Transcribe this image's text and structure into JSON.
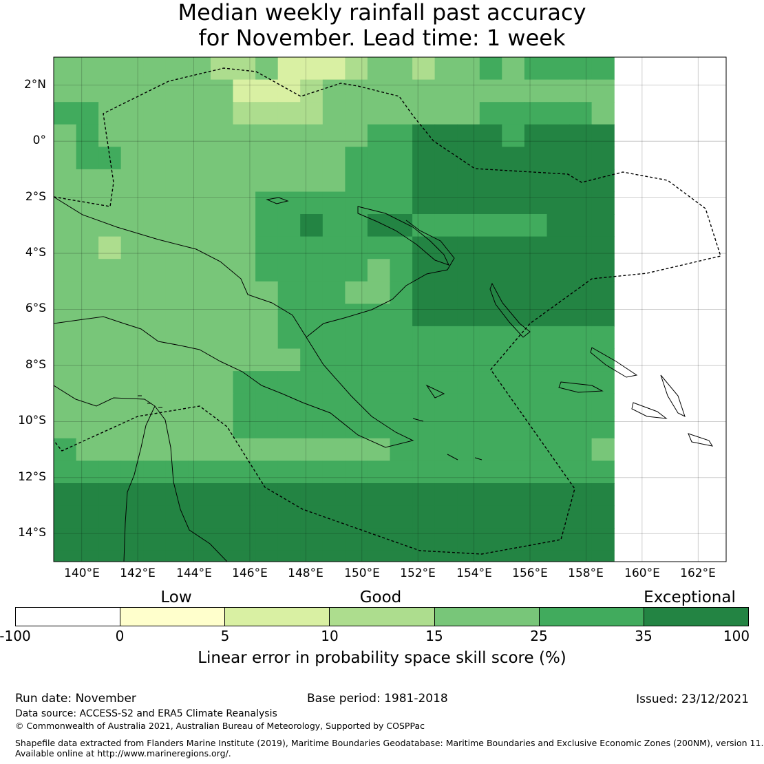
{
  "title": {
    "line1": "Median weekly rainfall past accuracy",
    "line2": "for November. Lead time: 1 week"
  },
  "map": {
    "lon_range": [
      139,
      163
    ],
    "lat_range": [
      -15,
      3
    ],
    "lat_ticks": [
      "2°N",
      "0°",
      "2°S",
      "4°S",
      "6°S",
      "8°S",
      "10°S",
      "12°S",
      "14°S"
    ],
    "lon_ticks": [
      "140°E",
      "142°E",
      "144°E",
      "146°E",
      "148°E",
      "150°E",
      "152°E",
      "154°E",
      "156°E",
      "158°E",
      "160°E",
      "162°E"
    ],
    "grid_deg": 0.8,
    "class_colors": [
      "#ffffff",
      "#ffffcc",
      "#d9f0a3",
      "#addd8e",
      "#78c679",
      "#41ab5d",
      "#238443"
    ],
    "grid_rows": [
      "4444444334222344344545555",
      "4444444422234444444444444",
      "5544444433334444444555554",
      "4544444444444455666656666",
      "4554444444444555666666666",
      "4444444444444555666666666",
      "4444444445555555666666666",
      "4444444445565566555555666",
      "4434444445555555666666666",
      "4444444445555545666666666",
      "4444444444555445666666666",
      "4444444444555555666666666",
      "4444444444555555555555555",
      "4444444444455555555555555",
      "4444444455555555555555555",
      "4444444455555555555555555",
      "4444444455555555555555555",
      "5444444444444445555555554",
      "5555555555555555555555555",
      "6666666666666666666666666",
      "6666666666666666666666666",
      "6666666666666666666666666",
      "6666666666666666666666666"
    ]
  },
  "categories": {
    "low": "Low",
    "good": "Good",
    "exceptional": "Exceptional"
  },
  "colorbar": {
    "boundaries": [
      "-100",
      "0",
      "5",
      "10",
      "15",
      "25",
      "35",
      "100"
    ],
    "colors": [
      "#ffffff",
      "#ffffcc",
      "#d9f0a3",
      "#addd8e",
      "#78c679",
      "#41ab5d",
      "#238443"
    ],
    "label": "Linear error in probability space skill score (%)"
  },
  "footer": {
    "run_date": "Run date: November",
    "base_period": "Base period: 1981-2018",
    "issued": "Issued: 23/12/2021",
    "data_source": "Data source: ACCESS-S2 and ERA5 Climate Reanalysis",
    "copyright": "© Commonwealth of Australia 2021, Australian Bureau of Meteorology, Supported by COSPPac",
    "shapefile_line1": "Shapefile data extracted from Flanders Marine Institute (2019), Maritime Boundaries Geodatabase: Maritime Boundaries and Exclusive Economic Zones (200NM), version 11.",
    "shapefile_line2": "Available online at http://www.marineregions.org/."
  }
}
